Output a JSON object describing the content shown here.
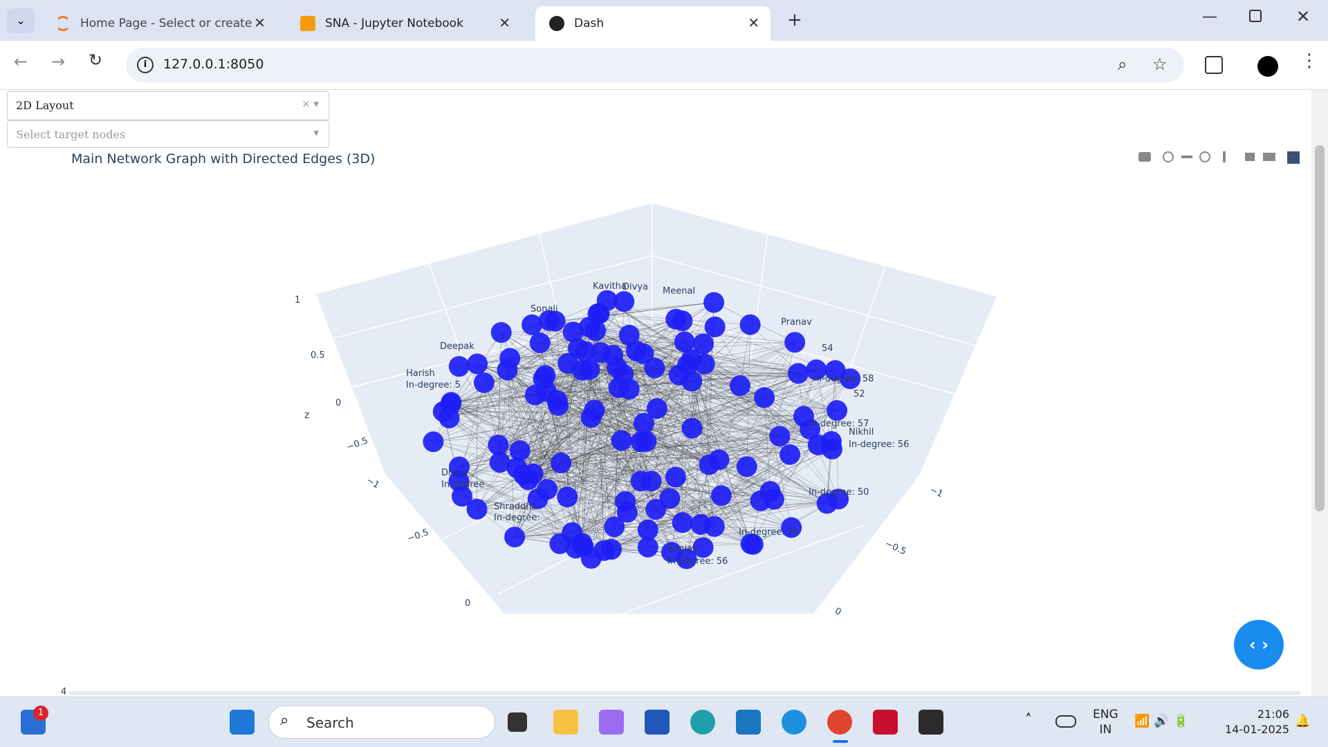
{
  "browser": {
    "tabs": [
      "Home Page - Select or create a",
      "SNA - Jupyter Notebook",
      "Dash"
    ],
    "url": "127.0.0.1:8050"
  },
  "controls": {
    "layout_dropdown": "2D Layout",
    "target_dropdown_placeholder": "Select target nodes"
  },
  "graph": {
    "title": "Main Network Graph with Directed Edges (3D)",
    "axis_title": "z",
    "z_ticks": [
      "1",
      "0.5",
      "0",
      "−0.5",
      "−1"
    ],
    "left_ticks": [
      "−0.5",
      "0"
    ],
    "right_ticks": [
      "−1",
      "−0.5",
      "0"
    ],
    "node_labels": [
      "Kavitha",
      "Divya",
      "Meenal",
      "Harish",
      "In-degree: 5",
      "Nikhil",
      "In-degree: 56",
      "Sanjay",
      "In-degree: 56",
      "Dhruv",
      "In-degree",
      "Shraddha",
      "In-degree:",
      "Pranav",
      "In-degree: 58",
      "In-degree: 57",
      "In-degree: 56",
      "In-degree: 50",
      "52",
      "54",
      "Deepak",
      "Sonali"
    ]
  },
  "next_graph_tick": "4",
  "taskbar": {
    "notification_count": "1",
    "search": "Search",
    "language": "ENG",
    "region": "IN",
    "time": "21:06",
    "date": "14-01-2025"
  }
}
